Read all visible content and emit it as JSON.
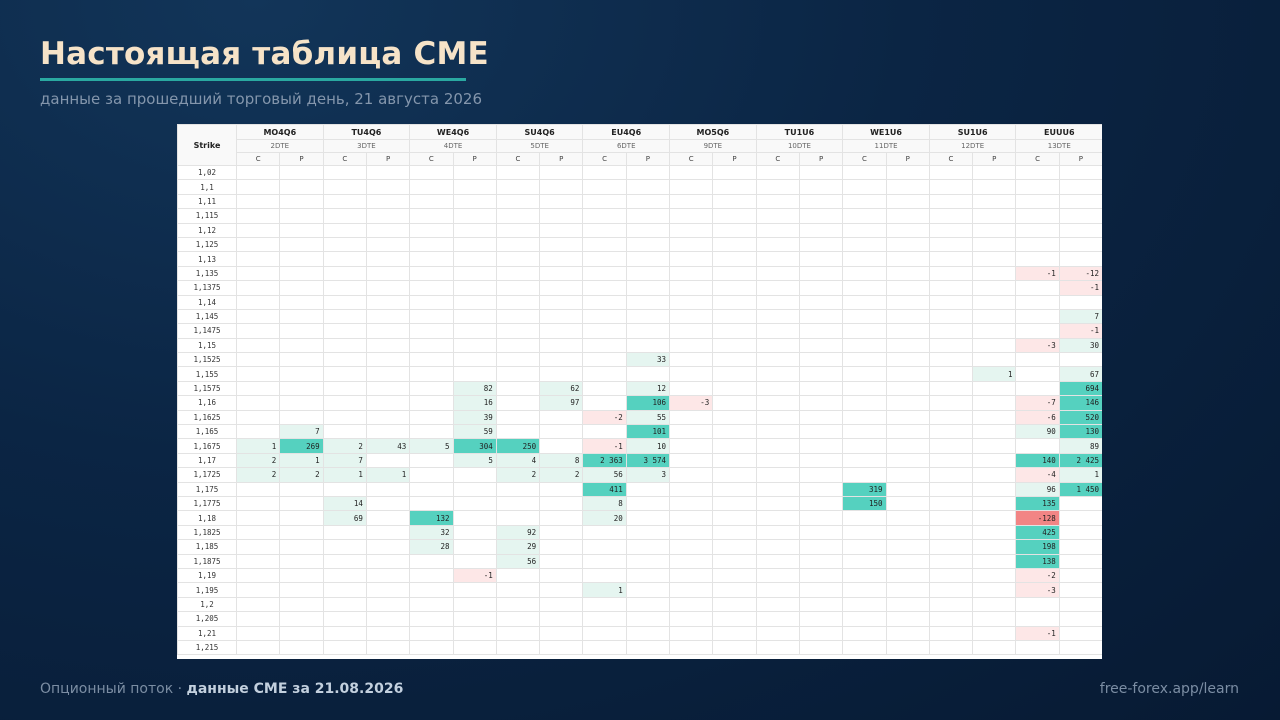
{
  "title": "Настоящая таблица CME",
  "subtitle": "данные за прошедший торговый день, 21 августа 2026",
  "footer": {
    "prefix": "Опционный поток · ",
    "highlight": "данные CME за 21.08.2026",
    "site": "free-forex.app/learn"
  },
  "colors": {
    "accent": "#2aa9a1",
    "title": "#f6e3c8",
    "light_green": "#e5f5f0",
    "teal": "#55d1bf",
    "light_red": "#fde7e7",
    "red": "#f28585"
  },
  "table": {
    "strike_header": "Strike",
    "side_labels": [
      "C",
      "P"
    ],
    "expiries": [
      {
        "code": "MO4Q6",
        "dte": "2DTE"
      },
      {
        "code": "TU4Q6",
        "dte": "3DTE"
      },
      {
        "code": "WE4Q6",
        "dte": "4DTE"
      },
      {
        "code": "SU4Q6",
        "dte": "5DTE"
      },
      {
        "code": "EU4Q6",
        "dte": "6DTE"
      },
      {
        "code": "MO5Q6",
        "dte": "9DTE"
      },
      {
        "code": "TU1U6",
        "dte": "10DTE"
      },
      {
        "code": "WE1U6",
        "dte": "11DTE"
      },
      {
        "code": "SU1U6",
        "dte": "12DTE"
      },
      {
        "code": "EUUU6",
        "dte": "13DTE"
      }
    ],
    "rows": [
      {
        "strike": "1,02",
        "cells": {}
      },
      {
        "strike": "1,1",
        "cells": {}
      },
      {
        "strike": "1,11",
        "cells": {}
      },
      {
        "strike": "1,115",
        "cells": {}
      },
      {
        "strike": "1,12",
        "cells": {}
      },
      {
        "strike": "1,125",
        "cells": {}
      },
      {
        "strike": "1,13",
        "cells": {}
      },
      {
        "strike": "1,135",
        "cells": {
          "18": [
            "-1",
            "pk"
          ],
          "19": [
            "-12",
            "pk"
          ]
        }
      },
      {
        "strike": "1,1375",
        "cells": {
          "19": [
            "-1",
            "pk"
          ]
        }
      },
      {
        "strike": "1,14",
        "cells": {}
      },
      {
        "strike": "1,145",
        "cells": {
          "19": [
            "7",
            "lg"
          ]
        }
      },
      {
        "strike": "1,1475",
        "cells": {
          "19": [
            "-1",
            "pk"
          ]
        }
      },
      {
        "strike": "1,15",
        "cells": {
          "18": [
            "-3",
            "pk"
          ],
          "19": [
            "30",
            "lg"
          ]
        }
      },
      {
        "strike": "1,1525",
        "cells": {
          "9": [
            "33",
            "lg"
          ]
        }
      },
      {
        "strike": "1,155",
        "cells": {
          "17": [
            "1",
            "lg"
          ],
          "19": [
            "67",
            "lg"
          ]
        }
      },
      {
        "strike": "1,1575",
        "cells": {
          "5": [
            "82",
            "lg"
          ],
          "7": [
            "62",
            "lg"
          ],
          "9": [
            "12",
            "lg"
          ],
          "19": [
            "694",
            "tl"
          ]
        }
      },
      {
        "strike": "1,16",
        "cells": {
          "5": [
            "16",
            "lg"
          ],
          "7": [
            "97",
            "lg"
          ],
          "9": [
            "106",
            "tl"
          ],
          "10": [
            "-3",
            "pk"
          ],
          "18": [
            "-7",
            "pk"
          ],
          "19": [
            "146",
            "tl"
          ]
        }
      },
      {
        "strike": "1,1625",
        "cells": {
          "5": [
            "39",
            "lg"
          ],
          "8": [
            "-2",
            "pk"
          ],
          "9": [
            "55",
            "lg"
          ],
          "18": [
            "-6",
            "pk"
          ],
          "19": [
            "520",
            "tl"
          ]
        }
      },
      {
        "strike": "1,165",
        "cells": {
          "1": [
            "7",
            "lg"
          ],
          "5": [
            "59",
            "lg"
          ],
          "9": [
            "101",
            "tl"
          ],
          "18": [
            "90",
            "lg"
          ],
          "19": [
            "130",
            "tl"
          ]
        }
      },
      {
        "strike": "1,1675",
        "cells": {
          "0": [
            "1",
            "lg"
          ],
          "1": [
            "269",
            "tl"
          ],
          "2": [
            "2",
            "lg"
          ],
          "3": [
            "43",
            "lg"
          ],
          "4": [
            "5",
            "lg"
          ],
          "5": [
            "304",
            "tl"
          ],
          "6": [
            "250",
            "tl"
          ],
          "8": [
            "-1",
            "pk"
          ],
          "9": [
            "10",
            "lg"
          ],
          "19": [
            "89",
            "lg"
          ]
        }
      },
      {
        "strike": "1,17",
        "cells": {
          "0": [
            "2",
            "lg"
          ],
          "1": [
            "1",
            "lg"
          ],
          "2": [
            "7",
            "lg"
          ],
          "5": [
            "5",
            "lg"
          ],
          "6": [
            "4",
            "lg"
          ],
          "7": [
            "8",
            "lg"
          ],
          "8": [
            "2 363",
            "tl"
          ],
          "9": [
            "3 574",
            "tl"
          ],
          "18": [
            "140",
            "tl"
          ],
          "19": [
            "2 425",
            "tl"
          ]
        }
      },
      {
        "strike": "1,1725",
        "cells": {
          "0": [
            "2",
            "lg"
          ],
          "1": [
            "2",
            "lg"
          ],
          "2": [
            "1",
            "lg"
          ],
          "3": [
            "1",
            "lg"
          ],
          "6": [
            "2",
            "lg"
          ],
          "7": [
            "2",
            "lg"
          ],
          "8": [
            "56",
            "lg"
          ],
          "9": [
            "3",
            "lg"
          ],
          "18": [
            "-4",
            "pk"
          ],
          "19": [
            "1",
            "lg"
          ]
        }
      },
      {
        "strike": "1,175",
        "cells": {
          "8": [
            "411",
            "tl"
          ],
          "14": [
            "319",
            "tl"
          ],
          "18": [
            "96",
            "lg"
          ],
          "19": [
            "1 450",
            "tl"
          ]
        }
      },
      {
        "strike": "1,1775",
        "cells": {
          "2": [
            "14",
            "lg"
          ],
          "8": [
            "8",
            "lg"
          ],
          "14": [
            "150",
            "tl"
          ],
          "18": [
            "135",
            "tl"
          ]
        }
      },
      {
        "strike": "1,18",
        "cells": {
          "2": [
            "69",
            "lg"
          ],
          "4": [
            "132",
            "tl"
          ],
          "8": [
            "20",
            "lg"
          ],
          "18": [
            "-128",
            "rd"
          ]
        }
      },
      {
        "strike": "1,1825",
        "cells": {
          "4": [
            "32",
            "lg"
          ],
          "6": [
            "92",
            "lg"
          ],
          "18": [
            "425",
            "tl"
          ]
        }
      },
      {
        "strike": "1,185",
        "cells": {
          "4": [
            "28",
            "lg"
          ],
          "6": [
            "29",
            "lg"
          ],
          "18": [
            "198",
            "tl"
          ]
        }
      },
      {
        "strike": "1,1875",
        "cells": {
          "6": [
            "56",
            "lg"
          ],
          "18": [
            "138",
            "tl"
          ]
        }
      },
      {
        "strike": "1,19",
        "cells": {
          "5": [
            "-1",
            "pk"
          ],
          "18": [
            "-2",
            "pk"
          ]
        }
      },
      {
        "strike": "1,195",
        "cells": {
          "8": [
            "1",
            "lg"
          ],
          "18": [
            "-3",
            "pk"
          ]
        }
      },
      {
        "strike": "1,2",
        "cells": {}
      },
      {
        "strike": "1,205",
        "cells": {}
      },
      {
        "strike": "1,21",
        "cells": {
          "18": [
            "-1",
            "pk"
          ]
        }
      },
      {
        "strike": "1,215",
        "cells": {}
      }
    ]
  }
}
